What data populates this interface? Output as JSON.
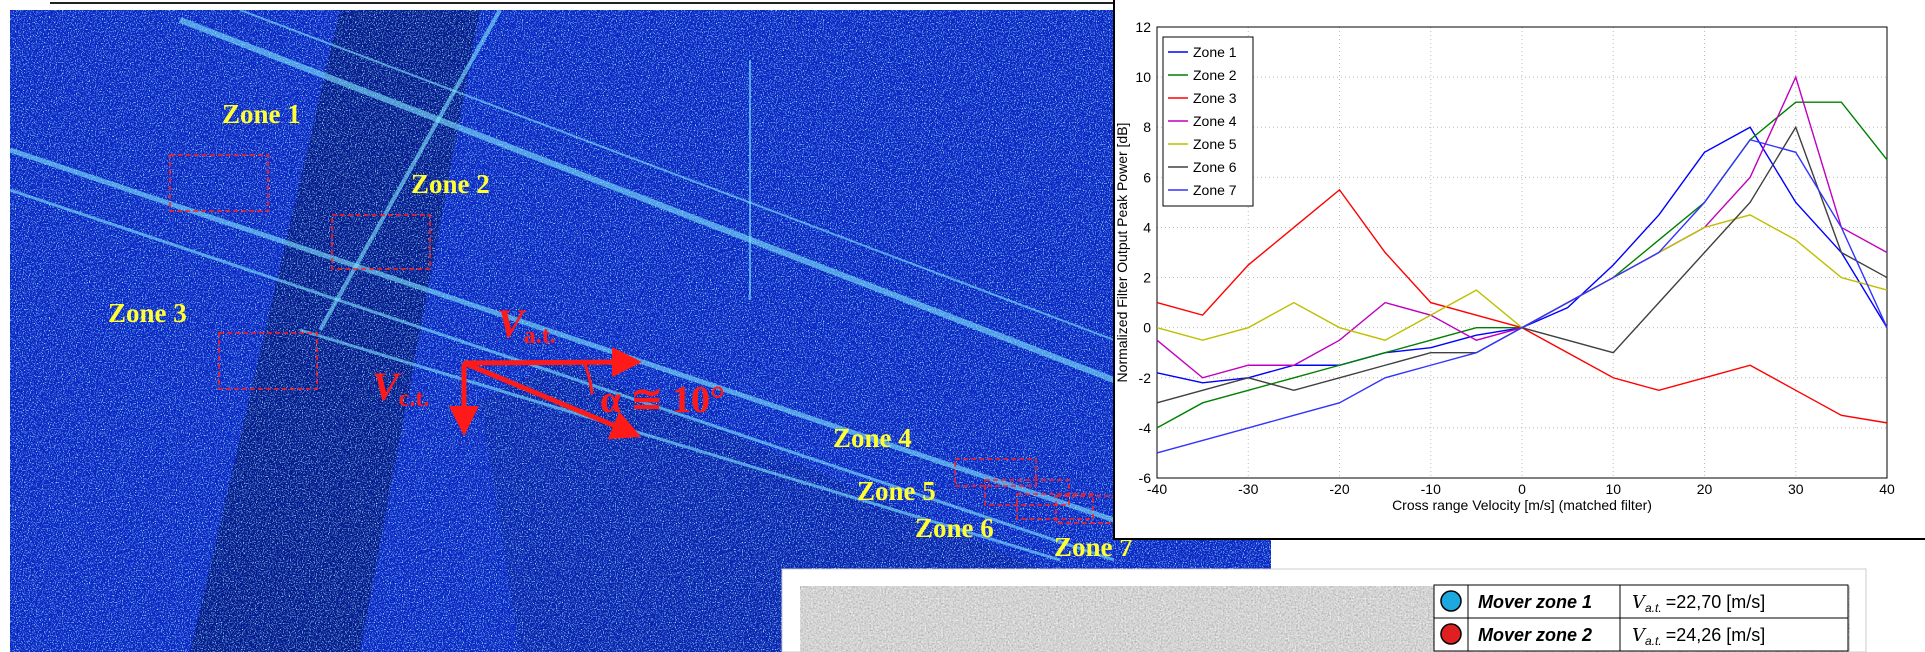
{
  "sar_image": {
    "zone_labels": [
      "Zone 1",
      "Zone 2",
      "Zone 3",
      "Zone 4",
      "Zone 5",
      "Zone 6",
      "Zone 7"
    ],
    "along_track": {
      "symbol": "V",
      "subscript": "a.t."
    },
    "cross_track": {
      "symbol": "V",
      "subscript": "c.t."
    },
    "angle": "α ≅ 10°"
  },
  "chart_data": {
    "type": "line",
    "xlabel": "Cross range Velocity [m/s] (matched filter)",
    "ylabel": "Normalized Filter Output Peak Power [dB]",
    "x": [
      -40,
      -35,
      -30,
      -25,
      -20,
      -15,
      -10,
      -5,
      0,
      5,
      10,
      15,
      20,
      25,
      30,
      35,
      40
    ],
    "series": [
      {
        "name": "Zone 1",
        "color": "#0000ff",
        "values": [
          -1.8,
          -2.2,
          -2,
          -1.5,
          -1.5,
          -1,
          -0.8,
          -0.3,
          0,
          0.8,
          2.5,
          4.5,
          7,
          8,
          5,
          3,
          0
        ]
      },
      {
        "name": "Zone 2",
        "color": "#008000",
        "values": [
          -4,
          -3,
          -2.5,
          -2,
          -1.5,
          -1,
          -0.5,
          0,
          0,
          1,
          2,
          3.5,
          5,
          7.5,
          9,
          9,
          6.7
        ]
      },
      {
        "name": "Zone 3",
        "color": "#ff0000",
        "values": [
          1,
          0.5,
          2.5,
          4,
          5.5,
          3,
          1,
          0.5,
          0,
          -1,
          -2,
          -2.5,
          -2,
          -1.5,
          -2.5,
          -3.5,
          -3.8
        ]
      },
      {
        "name": "Zone 4",
        "color": "#bf00bf",
        "values": [
          -0.5,
          -2,
          -1.5,
          -1.5,
          -0.5,
          1,
          0.5,
          -0.5,
          0,
          1,
          2,
          3,
          4,
          6,
          10,
          4,
          3
        ]
      },
      {
        "name": "Zone 5",
        "color": "#bfbf00",
        "values": [
          0,
          -0.5,
          0,
          1,
          0,
          -0.5,
          0.5,
          1.5,
          0,
          1,
          2,
          3,
          4,
          4.5,
          3.5,
          2,
          1.5
        ]
      },
      {
        "name": "Zone 6",
        "color": "#404040",
        "values": [
          -3,
          -2.5,
          -2,
          -2.5,
          -2,
          -1.5,
          -1,
          -1,
          0,
          -0.5,
          -1,
          1,
          3,
          5,
          8,
          3,
          2
        ]
      },
      {
        "name": "Zone 7",
        "color": "#3333ff",
        "values": [
          -5,
          -4.5,
          -4,
          -3.5,
          -3,
          -2,
          -1.5,
          -1,
          0,
          1,
          2,
          3,
          5,
          7.5,
          7,
          4,
          0
        ]
      }
    ],
    "xlim": [
      -40,
      40
    ],
    "xticks": [
      -40,
      -30,
      -20,
      -10,
      0,
      10,
      20,
      30,
      40
    ],
    "ylim": [
      -6,
      12
    ],
    "yticks": [
      -6,
      -4,
      -2,
      0,
      2,
      4,
      6,
      8,
      10,
      12
    ],
    "grid": true,
    "legend": "upper-left"
  },
  "table": {
    "rows": [
      {
        "mover": "Mover zone 1",
        "symbol": "V",
        "subscript": "a.t.",
        "value": "=22,70 [m/s]",
        "color": "#1ea8e0"
      },
      {
        "mover": "Mover zone 2",
        "symbol": "V",
        "subscript": "a.t.",
        "value": "=24,26 [m/s]",
        "color": "#e02020"
      }
    ]
  }
}
